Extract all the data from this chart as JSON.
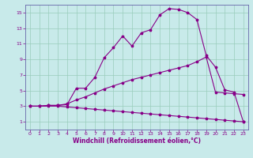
{
  "xlabel": "Windchill (Refroidissement éolien,°C)",
  "bg_color": "#c8eaea",
  "line_color": "#880088",
  "grid_color": "#99ccbb",
  "spine_color": "#6666aa",
  "xlim": [
    -0.5,
    23.5
  ],
  "ylim": [
    0,
    16
  ],
  "xticks": [
    0,
    1,
    2,
    3,
    4,
    5,
    6,
    7,
    8,
    9,
    10,
    11,
    12,
    13,
    14,
    15,
    16,
    17,
    18,
    19,
    20,
    21,
    22,
    23
  ],
  "yticks": [
    1,
    3,
    5,
    7,
    9,
    11,
    13,
    15
  ],
  "curve1_x": [
    0,
    1,
    2,
    3,
    4,
    5,
    6,
    7,
    8,
    9,
    10,
    11,
    12,
    13,
    14,
    15,
    16,
    17,
    18,
    19,
    20,
    21,
    22,
    23
  ],
  "curve1_y": [
    3.0,
    3.0,
    3.1,
    3.1,
    3.2,
    5.3,
    5.3,
    6.7,
    9.2,
    10.5,
    12.0,
    10.7,
    12.4,
    12.8,
    14.7,
    15.5,
    15.4,
    15.0,
    14.1,
    9.5,
    8.0,
    5.1,
    4.8,
    1.0
  ],
  "curve2_x": [
    0,
    1,
    2,
    3,
    4,
    5,
    6,
    7,
    8,
    9,
    10,
    11,
    12,
    13,
    14,
    15,
    16,
    17,
    18,
    19,
    20,
    21,
    22,
    23
  ],
  "curve2_y": [
    3.0,
    3.0,
    3.1,
    3.1,
    3.3,
    3.8,
    4.2,
    4.7,
    5.2,
    5.6,
    6.0,
    6.4,
    6.7,
    7.0,
    7.3,
    7.6,
    7.9,
    8.2,
    8.7,
    9.3,
    4.8,
    4.7,
    4.6,
    4.5
  ],
  "curve3_x": [
    0,
    1,
    2,
    3,
    4,
    5,
    6,
    7,
    8,
    9,
    10,
    11,
    12,
    13,
    14,
    15,
    16,
    17,
    18,
    19,
    20,
    21,
    22,
    23
  ],
  "curve3_y": [
    3.0,
    3.0,
    3.0,
    3.0,
    2.9,
    2.8,
    2.7,
    2.6,
    2.5,
    2.4,
    2.3,
    2.2,
    2.1,
    2.0,
    1.9,
    1.8,
    1.7,
    1.6,
    1.5,
    1.4,
    1.3,
    1.2,
    1.1,
    1.0
  ],
  "xlabel_fontsize": 5.5,
  "tick_fontsize": 4.5,
  "linewidth": 0.8,
  "markersize": 2.5
}
